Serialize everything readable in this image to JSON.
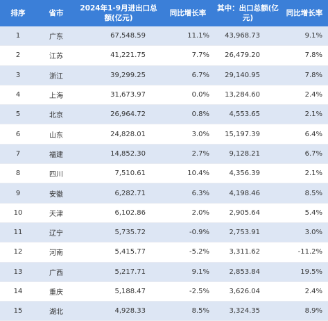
{
  "table": {
    "headers": [
      "排序",
      "省市",
      "2024年1-9月进出口总额(亿元)",
      "同比增长率",
      "其中：出口总额(亿元)",
      "同比增长率"
    ],
    "rows": [
      [
        "1",
        "广东",
        "67,548.59",
        "11.1%",
        "43,968.73",
        "9.1%"
      ],
      [
        "2",
        "江苏",
        "41,221.75",
        "7.7%",
        "26,479.20",
        "7.8%"
      ],
      [
        "3",
        "浙江",
        "39,299.25",
        "6.7%",
        "29,140.95",
        "7.8%"
      ],
      [
        "4",
        "上海",
        "31,673.97",
        "0.0%",
        "13,284.60",
        "2.4%"
      ],
      [
        "5",
        "北京",
        "26,964.72",
        "0.8%",
        "4,553.65",
        "2.1%"
      ],
      [
        "6",
        "山东",
        "24,828.01",
        "3.0%",
        "15,197.39",
        "6.4%"
      ],
      [
        "7",
        "福建",
        "14,852.30",
        "2.7%",
        "9,128.21",
        "6.7%"
      ],
      [
        "8",
        "四川",
        "7,510.61",
        "10.4%",
        "4,356.39",
        "2.1%"
      ],
      [
        "9",
        "安徽",
        "6,282.71",
        "6.3%",
        "4,198.46",
        "8.5%"
      ],
      [
        "10",
        "天津",
        "6,102.86",
        "2.0%",
        "2,905.64",
        "5.4%"
      ],
      [
        "11",
        "辽宁",
        "5,735.72",
        "-0.9%",
        "2,753.91",
        "3.0%"
      ],
      [
        "12",
        "河南",
        "5,415.77",
        "-5.2%",
        "3,311.62",
        "-11.2%"
      ],
      [
        "13",
        "广西",
        "5,217.71",
        "9.1%",
        "2,853.84",
        "19.5%"
      ],
      [
        "14",
        "重庆",
        "5,188.47",
        "-2.5%",
        "3,626.04",
        "2.4%"
      ],
      [
        "15",
        "湖北",
        "4,928.33",
        "8.5%",
        "3,324.35",
        "8.9%"
      ]
    ]
  }
}
